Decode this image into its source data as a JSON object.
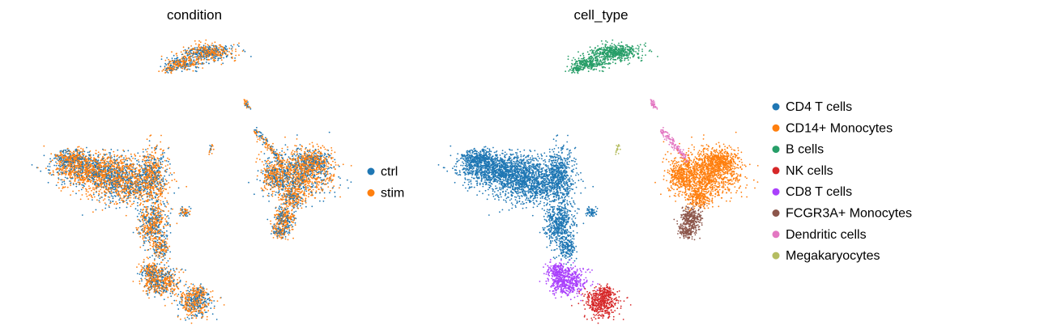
{
  "chart_data": [
    {
      "type": "scatter",
      "title": "condition",
      "xlabel": "",
      "ylabel": "",
      "grid": false,
      "legend_position": "right",
      "series": [
        {
          "name": "ctrl",
          "color": "#1f77b4"
        },
        {
          "name": "stim",
          "color": "#ff7f0e"
        }
      ]
    },
    {
      "type": "scatter",
      "title": "cell_type",
      "xlabel": "",
      "ylabel": "",
      "grid": false,
      "legend_position": "right",
      "series": [
        {
          "name": "CD4 T cells",
          "color": "#1f77b4"
        },
        {
          "name": "CD14+ Monocytes",
          "color": "#ff7f0e"
        },
        {
          "name": "B cells",
          "color": "#279e68"
        },
        {
          "name": "NK cells",
          "color": "#d62728"
        },
        {
          "name": "CD8 T cells",
          "color": "#aa40fc"
        },
        {
          "name": "FCGR3A+ Monocytes",
          "color": "#8c564b"
        },
        {
          "name": "Dendritic cells",
          "color": "#e377c2"
        },
        {
          "name": "Megakaryocytes",
          "color": "#b5bd61"
        }
      ]
    }
  ]
}
